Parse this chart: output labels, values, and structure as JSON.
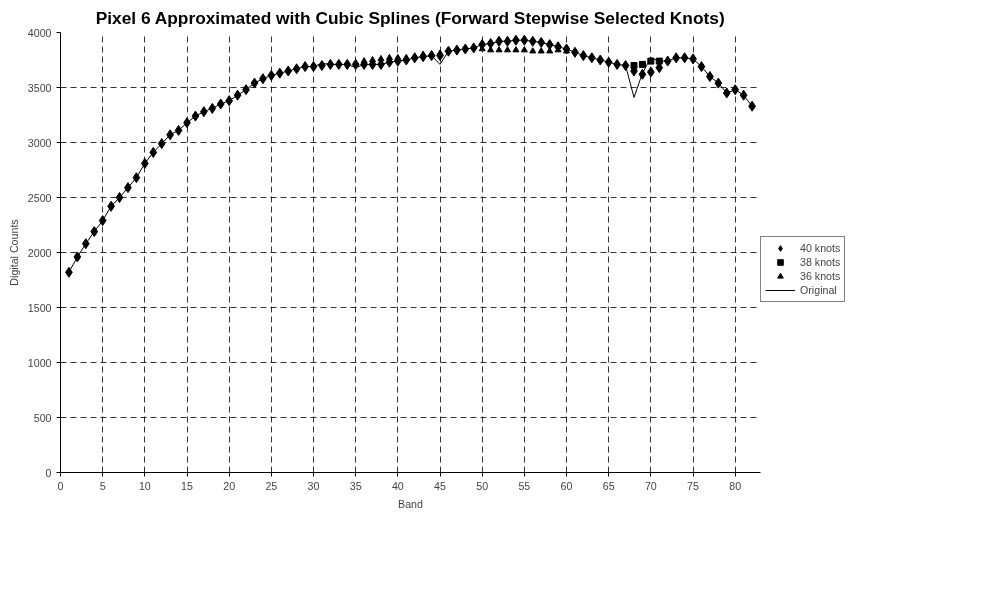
{
  "chart_data": {
    "type": "scatter",
    "title": "Pixel 6 Approximated with Cubic Splines (Forward Stepwise Selected Knots)",
    "xlabel": "Band",
    "ylabel": "Digital Counts",
    "x": [
      1,
      2,
      3,
      4,
      5,
      6,
      7,
      8,
      9,
      10,
      11,
      12,
      13,
      14,
      15,
      16,
      17,
      18,
      19,
      20,
      21,
      22,
      23,
      24,
      25,
      26,
      27,
      28,
      29,
      30,
      31,
      32,
      33,
      34,
      35,
      36,
      37,
      38,
      39,
      40,
      41,
      42,
      43,
      44,
      45,
      46,
      47,
      48,
      49,
      50,
      51,
      52,
      53,
      54,
      55,
      56,
      57,
      58,
      59,
      60,
      61,
      62,
      63,
      64,
      65,
      66,
      67,
      68,
      69,
      70,
      71,
      72,
      73,
      74,
      75,
      76,
      77,
      78,
      79,
      80,
      81,
      82
    ],
    "xlim": [
      0,
      83
    ],
    "xticks": [
      0,
      5,
      10,
      15,
      20,
      25,
      30,
      35,
      40,
      45,
      50,
      55,
      60,
      65,
      70,
      75,
      80
    ],
    "ylim": [
      0,
      4000
    ],
    "yticks": [
      0,
      500,
      1000,
      1500,
      2000,
      2500,
      3000,
      3500,
      4000
    ],
    "grid": true,
    "legend": "right",
    "series": [
      {
        "name": "40 knots",
        "marker": "diamond",
        "color": "#000000",
        "values": [
          1820,
          1960,
          2080,
          2190,
          2290,
          2420,
          2500,
          2590,
          2680,
          2810,
          2910,
          2990,
          3070,
          3110,
          3180,
          3240,
          3280,
          3310,
          3350,
          3380,
          3430,
          3480,
          3540,
          3580,
          3610,
          3630,
          3650,
          3670,
          3690,
          3690,
          3700,
          3710,
          3710,
          3710,
          3710,
          3710,
          3710,
          3710,
          3730,
          3740,
          3750,
          3770,
          3780,
          3790,
          3790,
          3830,
          3840,
          3850,
          3860,
          3890,
          3900,
          3920,
          3920,
          3930,
          3930,
          3920,
          3910,
          3890,
          3870,
          3850,
          3820,
          3790,
          3770,
          3750,
          3730,
          3710,
          3700,
          3650,
          3620,
          3640,
          3680,
          3740,
          3770,
          3770,
          3760,
          3690,
          3600,
          3540,
          3450,
          3480,
          3430,
          3330
        ]
      },
      {
        "name": "38 knots",
        "marker": "square",
        "color": "#000000",
        "values": [
          null,
          null,
          null,
          null,
          null,
          null,
          null,
          null,
          null,
          null,
          null,
          null,
          null,
          null,
          null,
          null,
          null,
          null,
          null,
          null,
          null,
          null,
          null,
          null,
          null,
          null,
          null,
          null,
          null,
          null,
          null,
          null,
          null,
          null,
          null,
          null,
          null,
          null,
          null,
          null,
          null,
          null,
          null,
          null,
          null,
          null,
          null,
          null,
          null,
          null,
          null,
          null,
          null,
          null,
          null,
          null,
          null,
          null,
          null,
          null,
          null,
          null,
          null,
          null,
          null,
          null,
          null,
          3700,
          3710,
          3740,
          3740,
          null,
          null,
          null,
          null,
          null,
          null,
          null,
          null,
          null,
          null,
          null
        ]
      },
      {
        "name": "36 knots",
        "marker": "triangle",
        "color": "#000000",
        "values": [
          null,
          null,
          null,
          null,
          null,
          null,
          null,
          null,
          null,
          null,
          null,
          null,
          null,
          null,
          null,
          null,
          null,
          null,
          null,
          null,
          null,
          null,
          null,
          null,
          null,
          null,
          null,
          null,
          null,
          null,
          null,
          null,
          null,
          null,
          null,
          3740,
          3750,
          3760,
          3770,
          3770,
          3770,
          3780,
          3800,
          3800,
          3810,
          null,
          null,
          null,
          null,
          3850,
          3840,
          3840,
          3840,
          3840,
          3840,
          3830,
          3830,
          3830,
          3840,
          3830,
          null,
          null,
          null,
          null,
          null,
          null,
          null,
          null,
          null,
          null,
          null,
          null,
          null,
          null,
          null,
          null,
          null,
          null,
          null,
          null,
          null,
          null
        ]
      },
      {
        "name": "Original",
        "type": "line",
        "marker": "none",
        "line_style": "solid",
        "color": "#000000",
        "values": [
          1820,
          1960,
          2080,
          2190,
          2290,
          2420,
          2500,
          2590,
          2680,
          2810,
          2910,
          2990,
          3070,
          3110,
          3180,
          3240,
          3280,
          3310,
          3350,
          3380,
          3430,
          3480,
          3540,
          3580,
          3610,
          3630,
          3650,
          3670,
          3690,
          3690,
          3720,
          3710,
          3710,
          3710,
          3680,
          3710,
          3710,
          3710,
          3730,
          3740,
          3750,
          3770,
          3780,
          3790,
          3710,
          3830,
          3840,
          3850,
          3860,
          3890,
          3900,
          3920,
          3920,
          3930,
          3930,
          3920,
          3910,
          3890,
          3870,
          3850,
          3820,
          3790,
          3770,
          3750,
          3730,
          3710,
          3700,
          3410,
          3630,
          3770,
          3740,
          3740,
          3770,
          3770,
          3760,
          3690,
          3600,
          3540,
          3450,
          3480,
          3430,
          3330
        ]
      }
    ]
  }
}
